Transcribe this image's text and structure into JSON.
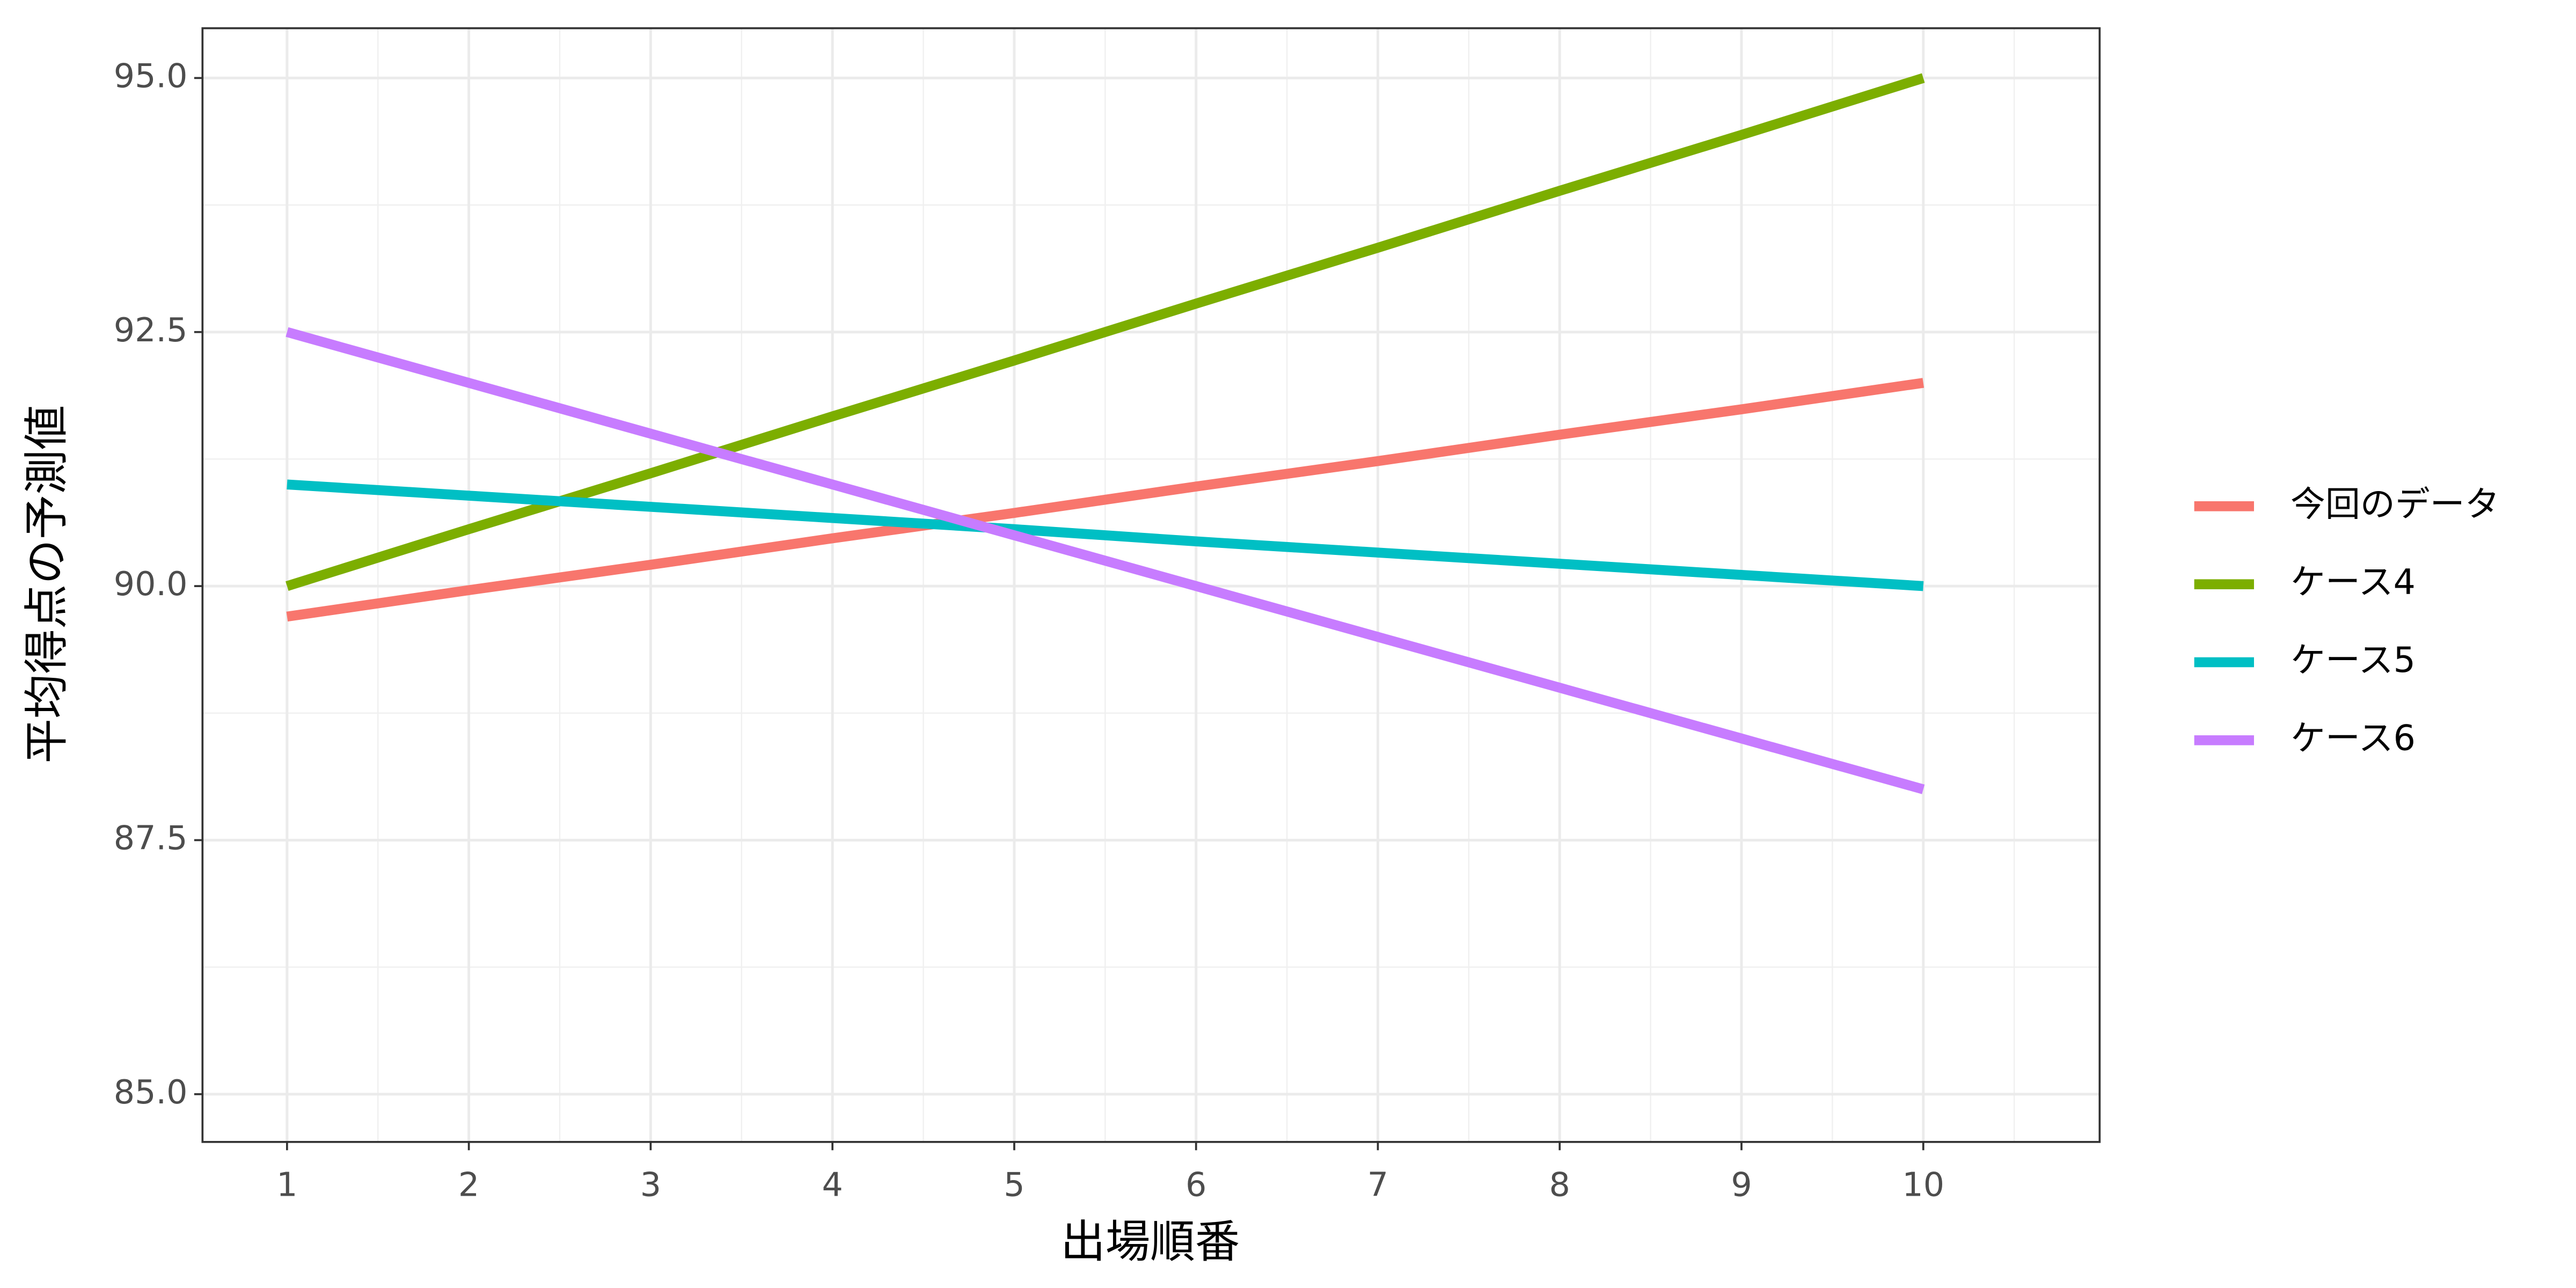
{
  "chart_data": {
    "type": "line",
    "x_label": "出場順番",
    "y_label": "平均得点の予測値",
    "x": [
      1,
      2,
      3,
      4,
      5,
      6,
      7,
      8,
      9,
      10
    ],
    "series": [
      {
        "name": "今回のデータ",
        "color": "#F8766D",
        "values": [
          89.7,
          89.96,
          90.21,
          90.47,
          90.72,
          90.98,
          91.23,
          91.49,
          91.74,
          92.0
        ]
      },
      {
        "name": "ケース4",
        "color": "#7CAE00",
        "values": [
          90.0,
          90.56,
          91.11,
          91.67,
          92.22,
          92.78,
          93.33,
          93.89,
          94.44,
          95.0
        ]
      },
      {
        "name": "ケース5",
        "color": "#00BFC4",
        "values": [
          91.0,
          90.89,
          90.78,
          90.67,
          90.56,
          90.44,
          90.33,
          90.22,
          90.11,
          90.0
        ]
      },
      {
        "name": "ケース6",
        "color": "#C77CFF",
        "values": [
          92.5,
          92.0,
          91.5,
          91.0,
          90.5,
          90.0,
          89.5,
          89.0,
          88.5,
          88.0
        ]
      }
    ],
    "xlim": [
      0.535,
      10.97
    ],
    "ylim": [
      84.53,
      95.49
    ],
    "xticks": [
      1,
      2,
      3,
      4,
      5,
      6,
      7,
      8,
      9,
      10
    ],
    "yticks": [
      {
        "value": 85,
        "label": "85.0"
      },
      {
        "value": 87.5,
        "label": "87.5"
      },
      {
        "value": 90,
        "label": "90.0"
      },
      {
        "value": 92.5,
        "label": "92.5"
      },
      {
        "value": 95,
        "label": "95.0"
      }
    ],
    "grid": true,
    "legend_position": "right"
  }
}
